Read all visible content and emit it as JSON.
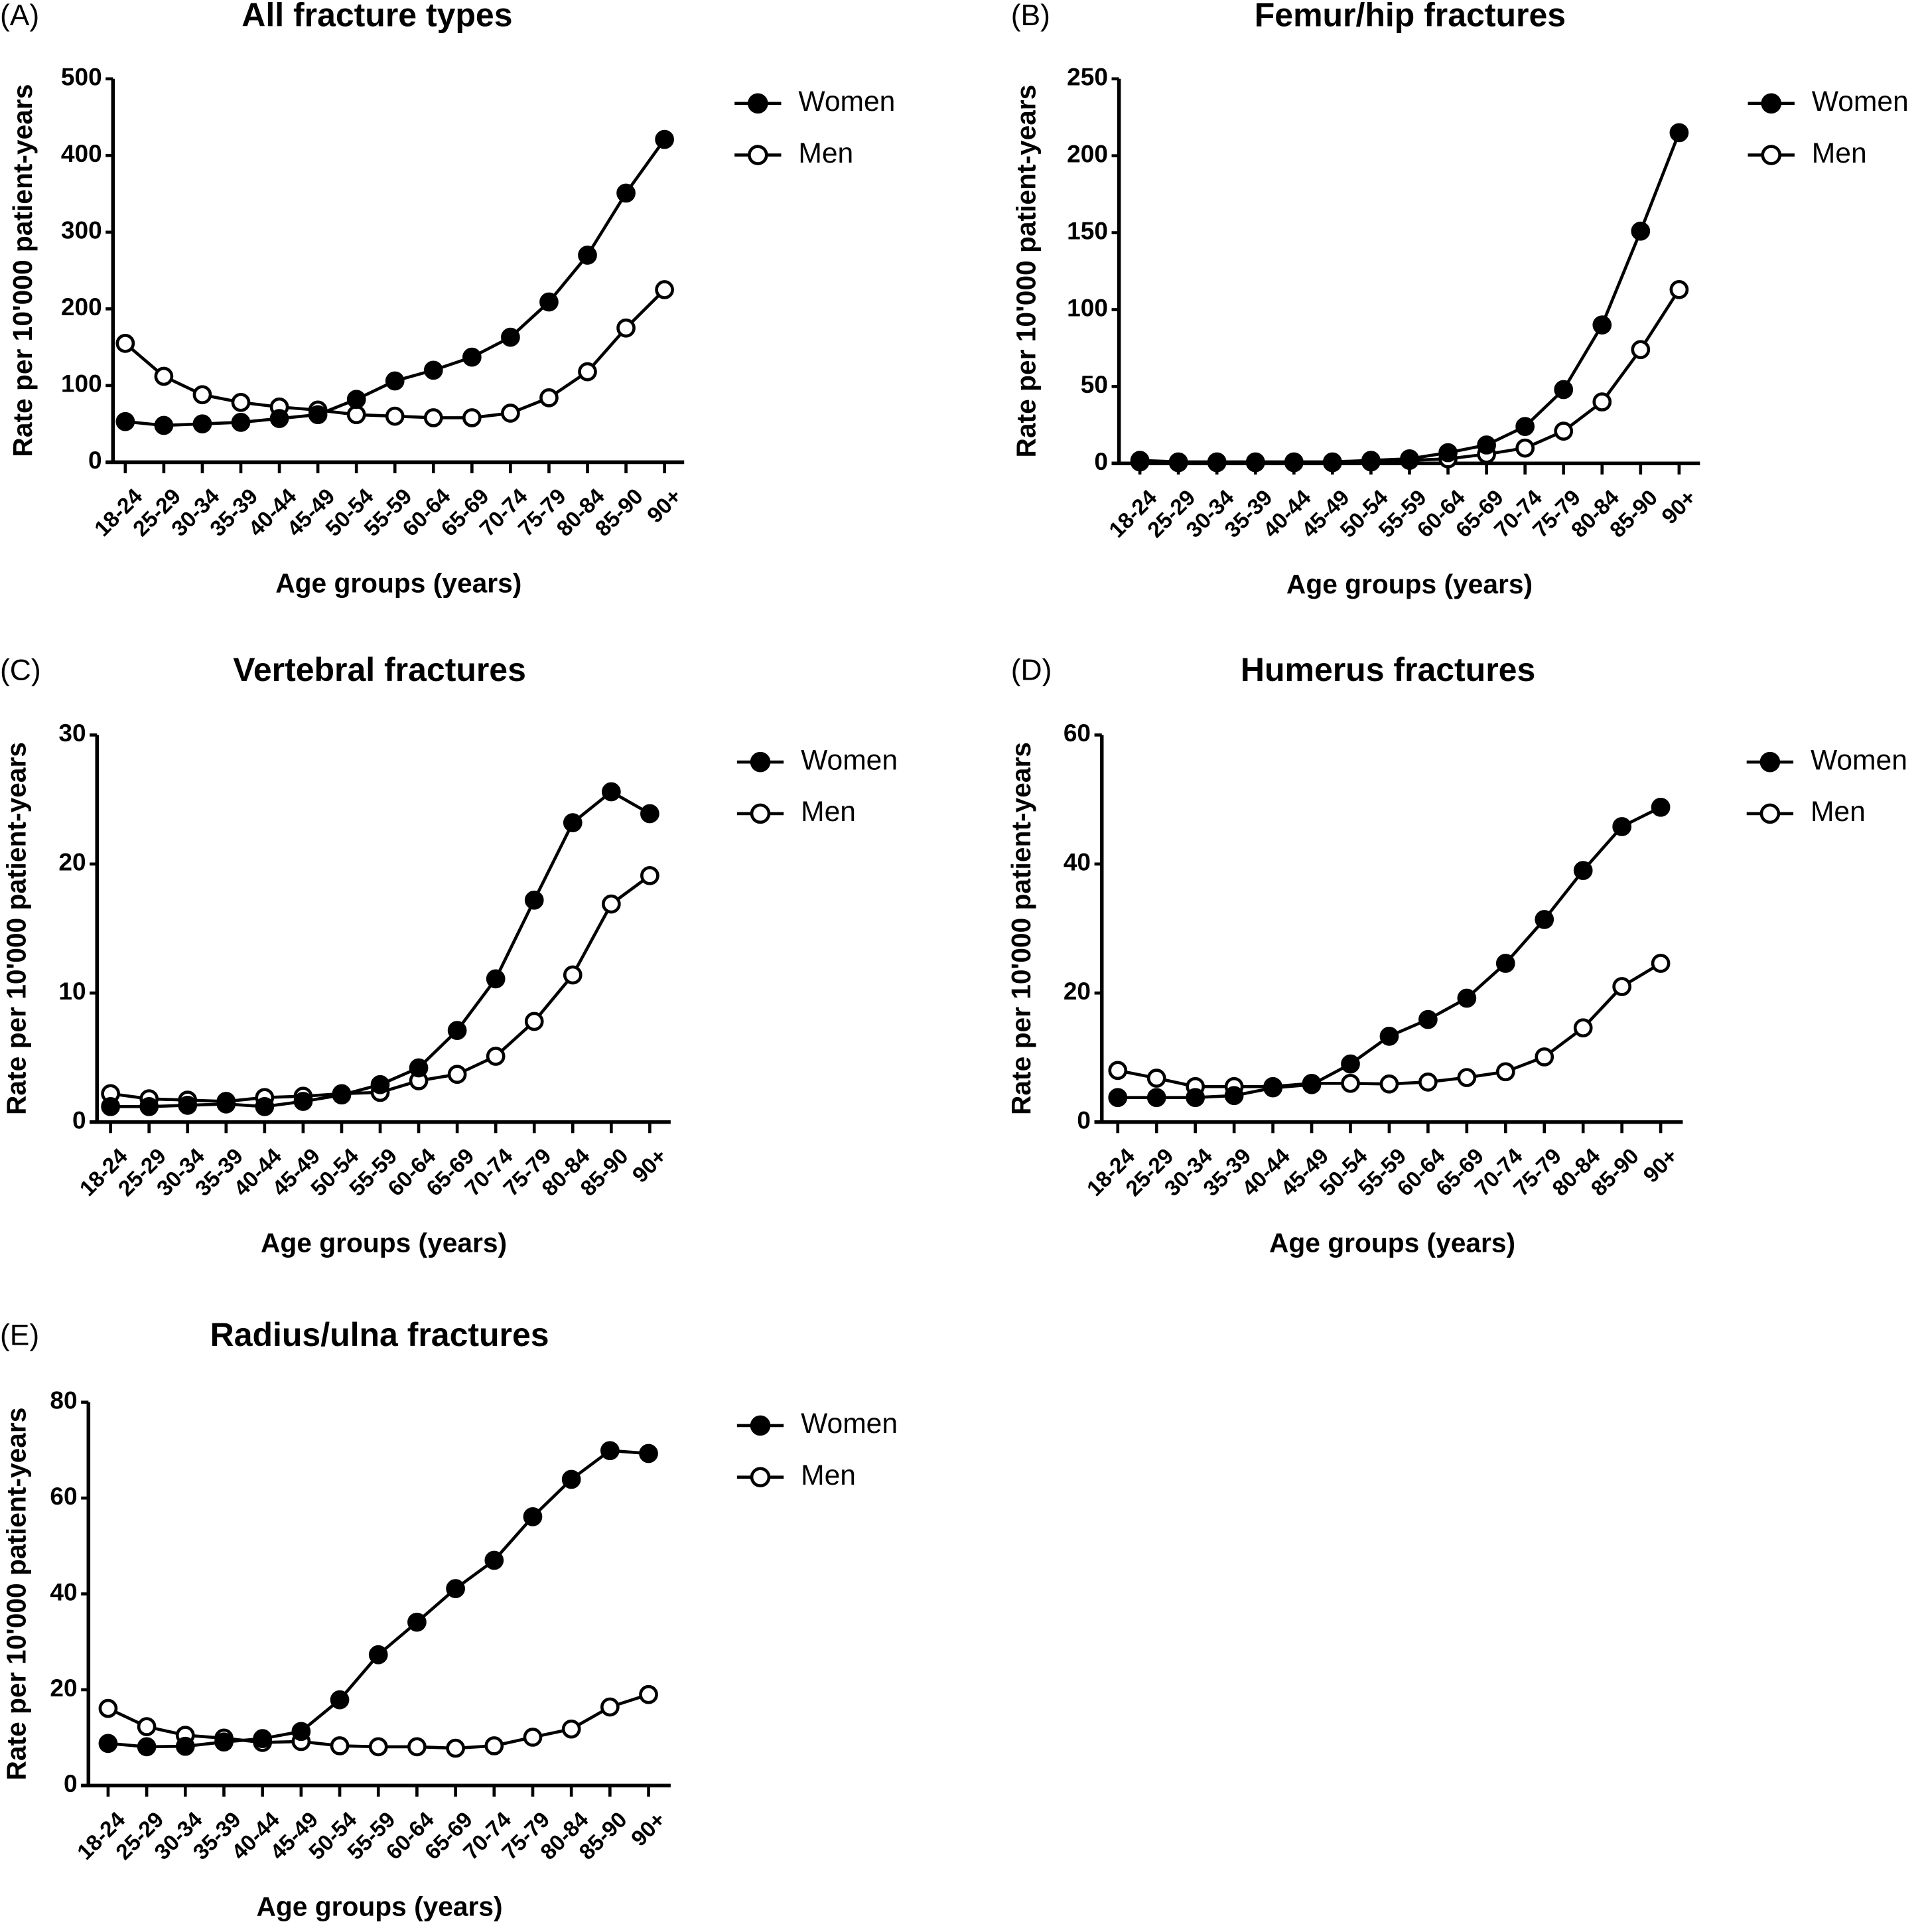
{
  "chart_data": [
    {
      "type": "line",
      "panel_label": "(A)",
      "title": "All fracture types",
      "xlabel": "Age groups (years)",
      "ylabel": "Rate per 10'000 patient-years",
      "ylim": [
        0,
        500
      ],
      "yticks": [
        0,
        100,
        200,
        300,
        400,
        500
      ],
      "categories": [
        "18-24",
        "25-29",
        "30-34",
        "35-39",
        "40-44",
        "45-49",
        "50-54",
        "55-59",
        "60-64",
        "65-69",
        "70-74",
        "75-79",
        "80-84",
        "85-90",
        "90+"
      ],
      "legend_position": "right",
      "grid": false,
      "series": [
        {
          "name": "Women",
          "marker": "filled-circle",
          "values": [
            53,
            48,
            50,
            52,
            57,
            62,
            82,
            106,
            120,
            137,
            163,
            209,
            270,
            351,
            421
          ]
        },
        {
          "name": "Men",
          "marker": "open-circle",
          "values": [
            155,
            112,
            88,
            78,
            72,
            68,
            62,
            60,
            58,
            58,
            64,
            84,
            118,
            175,
            225
          ]
        }
      ]
    },
    {
      "type": "line",
      "panel_label": "(B)",
      "title": "Femur/hip fractures",
      "xlabel": "Age groups (years)",
      "ylabel": "Rate per 10'000 patient-years",
      "ylim": [
        0,
        250
      ],
      "yticks": [
        0,
        50,
        100,
        150,
        200,
        250
      ],
      "categories": [
        "18-24",
        "25-29",
        "30-34",
        "35-39",
        "40-44",
        "45-49",
        "50-54",
        "55-59",
        "60-64",
        "65-69",
        "70-74",
        "75-79",
        "80-84",
        "85-90",
        "90+"
      ],
      "legend_position": "right",
      "grid": false,
      "series": [
        {
          "name": "Women",
          "marker": "filled-circle",
          "values": [
            2,
            1,
            1,
            1,
            1,
            1,
            2,
            3,
            7,
            12,
            24,
            48,
            90,
            151,
            215
          ]
        },
        {
          "name": "Men",
          "marker": "open-circle",
          "values": [
            1,
            0.5,
            0.5,
            0.5,
            0.5,
            0.5,
            1,
            2,
            3,
            6,
            10,
            21,
            40,
            74,
            113
          ]
        }
      ]
    },
    {
      "type": "line",
      "panel_label": "(C)",
      "title": "Vertebral fractures",
      "xlabel": "Age groups (years)",
      "ylabel": "Rate per 10'000 patient-years",
      "ylim": [
        0,
        30
      ],
      "yticks": [
        0,
        10,
        20,
        30
      ],
      "categories": [
        "18-24",
        "25-29",
        "30-34",
        "35-39",
        "40-44",
        "45-49",
        "50-54",
        "55-59",
        "60-64",
        "65-69",
        "70-74",
        "75-79",
        "80-84",
        "85-90",
        "90+"
      ],
      "legend_position": "right",
      "grid": false,
      "series": [
        {
          "name": "Women",
          "marker": "filled-circle",
          "values": [
            1.2,
            1.2,
            1.3,
            1.4,
            1.2,
            1.6,
            2.1,
            2.9,
            4.2,
            7.1,
            11.1,
            17.2,
            23.2,
            25.6,
            23.9
          ]
        },
        {
          "name": "Men",
          "marker": "open-circle",
          "values": [
            2.2,
            1.8,
            1.7,
            1.6,
            1.9,
            2.0,
            2.2,
            2.3,
            3.2,
            3.7,
            5.1,
            7.8,
            11.4,
            16.9,
            19.1
          ]
        }
      ]
    },
    {
      "type": "line",
      "panel_label": "(D)",
      "title": "Humerus fractures",
      "xlabel": "Age groups (years)",
      "ylabel": "Rate per 10'000 patient-years",
      "ylim": [
        0,
        60
      ],
      "yticks": [
        0,
        20,
        40,
        60
      ],
      "categories": [
        "18-24",
        "25-29",
        "30-34",
        "35-39",
        "40-44",
        "45-49",
        "50-54",
        "55-59",
        "60-64",
        "65-69",
        "70-74",
        "75-79",
        "80-84",
        "85-90",
        "90+"
      ],
      "legend_position": "right",
      "grid": false,
      "series": [
        {
          "name": "Women",
          "marker": "filled-circle",
          "values": [
            3.8,
            3.8,
            3.8,
            4.1,
            5.3,
            5.8,
            9.0,
            13.3,
            15.9,
            19.2,
            24.6,
            31.4,
            39.0,
            45.8,
            48.8
          ]
        },
        {
          "name": "Men",
          "marker": "open-circle",
          "values": [
            8.0,
            6.8,
            5.5,
            5.5,
            5.5,
            6.0,
            6.0,
            5.9,
            6.2,
            6.9,
            7.8,
            10.1,
            14.6,
            21.0,
            24.6
          ]
        }
      ]
    },
    {
      "type": "line",
      "panel_label": "(E)",
      "title": "Radius/ulna fractures",
      "xlabel": "Age groups (years)",
      "ylabel": "Rate per 10'000 patient-years",
      "ylim": [
        0,
        80
      ],
      "yticks": [
        0,
        20,
        40,
        60,
        80
      ],
      "categories": [
        "18-24",
        "25-29",
        "30-34",
        "35-39",
        "40-44",
        "45-49",
        "50-54",
        "55-59",
        "60-64",
        "65-69",
        "70-74",
        "75-79",
        "80-84",
        "85-90",
        "90+"
      ],
      "legend_position": "right",
      "grid": false,
      "series": [
        {
          "name": "Women",
          "marker": "filled-circle",
          "values": [
            8.8,
            8.1,
            8.2,
            9.1,
            9.8,
            11.3,
            17.9,
            27.3,
            34.1,
            41.1,
            47.0,
            56.1,
            63.9,
            69.9,
            69.3
          ]
        },
        {
          "name": "Men",
          "marker": "open-circle",
          "values": [
            16.1,
            12.3,
            10.5,
            9.9,
            9.0,
            9.2,
            8.3,
            8.1,
            8.1,
            7.8,
            8.3,
            10.1,
            11.8,
            16.4,
            19.0
          ]
        }
      ]
    }
  ]
}
